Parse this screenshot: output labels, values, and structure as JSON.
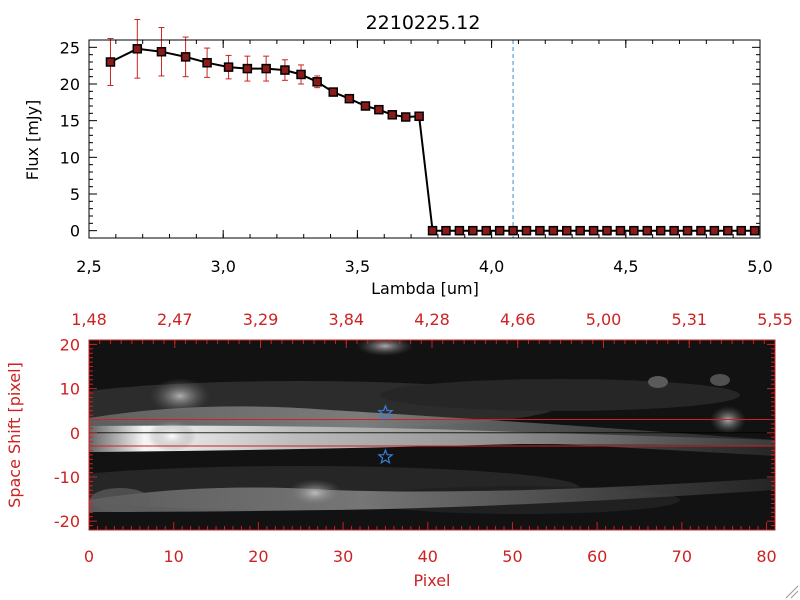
{
  "colors": {
    "axis_black": "#000000",
    "red": "#cc2222",
    "dashed_blue": "#3b8fd0",
    "star_blue": "#3a7fd6",
    "image_bg": "#111111"
  },
  "icons": {
    "marker": "star-icon"
  },
  "chart_data": [
    {
      "type": "line",
      "title": "2210225.12",
      "xlabel": "Lambda [um]",
      "ylabel": "Flux [mJy]",
      "xlim": [
        2.5,
        5.0
      ],
      "ylim": [
        -1,
        26
      ],
      "xticks": [
        "2,5",
        "3,0",
        "3,5",
        "4,0",
        "4,5",
        "5,0"
      ],
      "xtick_values": [
        2.5,
        3.0,
        3.5,
        4.0,
        4.5,
        5.0
      ],
      "yticks": [
        "0",
        "5",
        "10",
        "15",
        "20",
        "25"
      ],
      "ytick_values": [
        0,
        5,
        10,
        15,
        20,
        25
      ],
      "vline": 4.08,
      "grid": false,
      "series": [
        {
          "x": [
            2.58,
            2.68,
            2.77,
            2.86,
            2.94,
            3.02,
            3.09,
            3.16,
            3.23,
            3.29,
            3.35,
            3.41,
            3.47,
            3.53,
            3.58,
            3.63,
            3.68,
            3.73,
            3.78,
            3.83,
            3.88,
            3.93,
            3.98,
            4.03,
            4.08,
            4.13,
            4.18,
            4.23,
            4.28,
            4.33,
            4.38,
            4.43,
            4.48,
            4.53,
            4.58,
            4.63,
            4.68,
            4.73,
            4.78,
            4.83,
            4.88,
            4.93,
            4.98
          ],
          "y": [
            23.0,
            24.8,
            24.4,
            23.7,
            22.9,
            22.3,
            22.1,
            22.1,
            21.9,
            21.3,
            20.3,
            18.9,
            18.0,
            17.0,
            16.5,
            15.8,
            15.5,
            15.6,
            0,
            0,
            0,
            0,
            0,
            0,
            0,
            0,
            0,
            0,
            0,
            0,
            0,
            0,
            0,
            0,
            0,
            0,
            0,
            0,
            0,
            0,
            0,
            0,
            0
          ],
          "err": [
            3.2,
            4.0,
            3.3,
            2.7,
            2.0,
            1.6,
            1.7,
            1.7,
            1.4,
            1.3,
            0.8,
            0.5,
            0.4,
            0.3,
            0.3,
            0.2,
            0.2,
            0.2,
            0,
            0,
            0,
            0,
            0,
            0,
            0,
            0,
            0,
            0,
            0,
            0,
            0,
            0,
            0,
            0,
            0,
            0,
            0,
            0,
            0,
            0,
            0,
            0,
            0
          ]
        }
      ]
    },
    {
      "type": "heatmap",
      "xlabel": "Pixel",
      "ylabel": "Space Shift [pixel]",
      "xlim": [
        0,
        81
      ],
      "ylim": [
        -22,
        21
      ],
      "xticks": [
        "0",
        "10",
        "20",
        "30",
        "40",
        "50",
        "60",
        "70",
        "80"
      ],
      "xtick_values": [
        0,
        10,
        20,
        30,
        40,
        50,
        60,
        70,
        80
      ],
      "yticks": [
        "20",
        "10",
        "0",
        "-10",
        "-20"
      ],
      "ytick_values": [
        20,
        10,
        0,
        -10,
        -20
      ],
      "top_axis_labels": [
        "1,48",
        "2,47",
        "3,29",
        "3,84",
        "4,28",
        "4,66",
        "5,00",
        "5,31",
        "5,55"
      ],
      "hlines": [
        3,
        -3
      ],
      "center_line": 0,
      "stars": [
        {
          "x": 35,
          "y": 4.5
        },
        {
          "x": 35,
          "y": -5.5
        }
      ]
    }
  ]
}
